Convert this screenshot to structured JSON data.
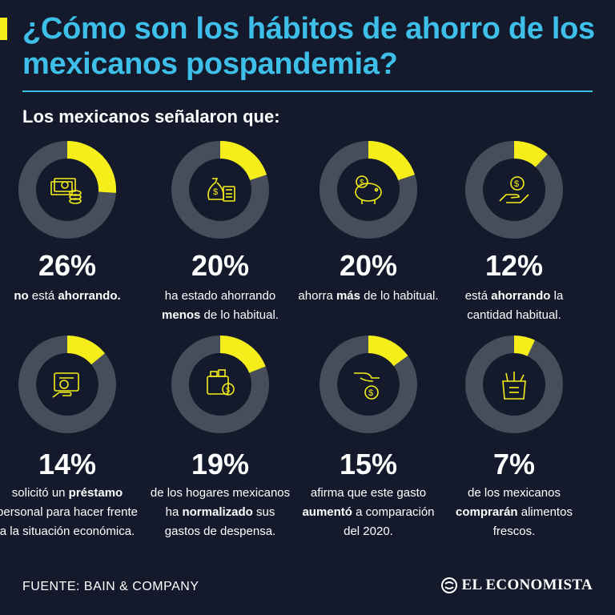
{
  "title": "¿Cómo son los hábitos de ahorro de los mexicanos pospandemia?",
  "subtitle": "Los mexicanos señalaron que:",
  "source": "FUENTE: BAIN & COMPANY",
  "logo_text": "EL ECONOMISTA",
  "colors": {
    "accent": "#f5ee1a",
    "title": "#3dbfe9",
    "ring": "#474d59",
    "background": "#141a2b"
  },
  "chart_data": [
    {
      "type": "pie",
      "value": 26,
      "label": "26%",
      "icon": "banknotes-coins-icon",
      "desc_parts": [
        {
          "t": "no",
          "b": true
        },
        {
          "t": " está "
        },
        {
          "t": "ahorrando.",
          "b": true
        }
      ]
    },
    {
      "type": "pie",
      "value": 20,
      "label": "20%",
      "icon": "money-bag-calculator-icon",
      "desc_parts": [
        {
          "t": "ha estado ahorrando "
        },
        {
          "t": "menos",
          "b": true
        },
        {
          "t": " de lo habitual."
        }
      ]
    },
    {
      "type": "pie",
      "value": 20,
      "label": "20%",
      "icon": "piggy-bank-icon",
      "desc_parts": [
        {
          "t": "ahorra "
        },
        {
          "t": "más",
          "b": true
        },
        {
          "t": " de lo habitual."
        }
      ]
    },
    {
      "type": "pie",
      "value": 12,
      "label": "12%",
      "icon": "hand-coin-icon",
      "desc_parts": [
        {
          "t": "está "
        },
        {
          "t": "ahorrando",
          "b": true
        },
        {
          "t": " la cantidad habitual."
        }
      ]
    },
    {
      "type": "pie",
      "value": 14,
      "label": "14%",
      "icon": "loan-wallet-icon",
      "desc_parts": [
        {
          "t": "solicitó un "
        },
        {
          "t": "préstamo",
          "b": true
        },
        {
          "t": " personal para hacer frente a la situación económica."
        }
      ]
    },
    {
      "type": "pie",
      "value": 19,
      "label": "19%",
      "icon": "wallet-coin-icon",
      "desc_parts": [
        {
          "t": "de los hogares mexicanos ha "
        },
        {
          "t": "normalizado",
          "b": true
        },
        {
          "t": " sus gastos de despensa."
        }
      ]
    },
    {
      "type": "pie",
      "value": 15,
      "label": "15%",
      "icon": "hand-dropping-coin-icon",
      "desc_parts": [
        {
          "t": "afirma que este gasto "
        },
        {
          "t": "aumentó",
          "b": true
        },
        {
          "t": " a comparación del 2020."
        }
      ]
    },
    {
      "type": "pie",
      "value": 7,
      "label": "7%",
      "icon": "grocery-bag-icon",
      "desc_parts": [
        {
          "t": "de los mexicanos "
        },
        {
          "t": "comprarán",
          "b": true
        },
        {
          "t": " alimentos frescos."
        }
      ]
    }
  ]
}
